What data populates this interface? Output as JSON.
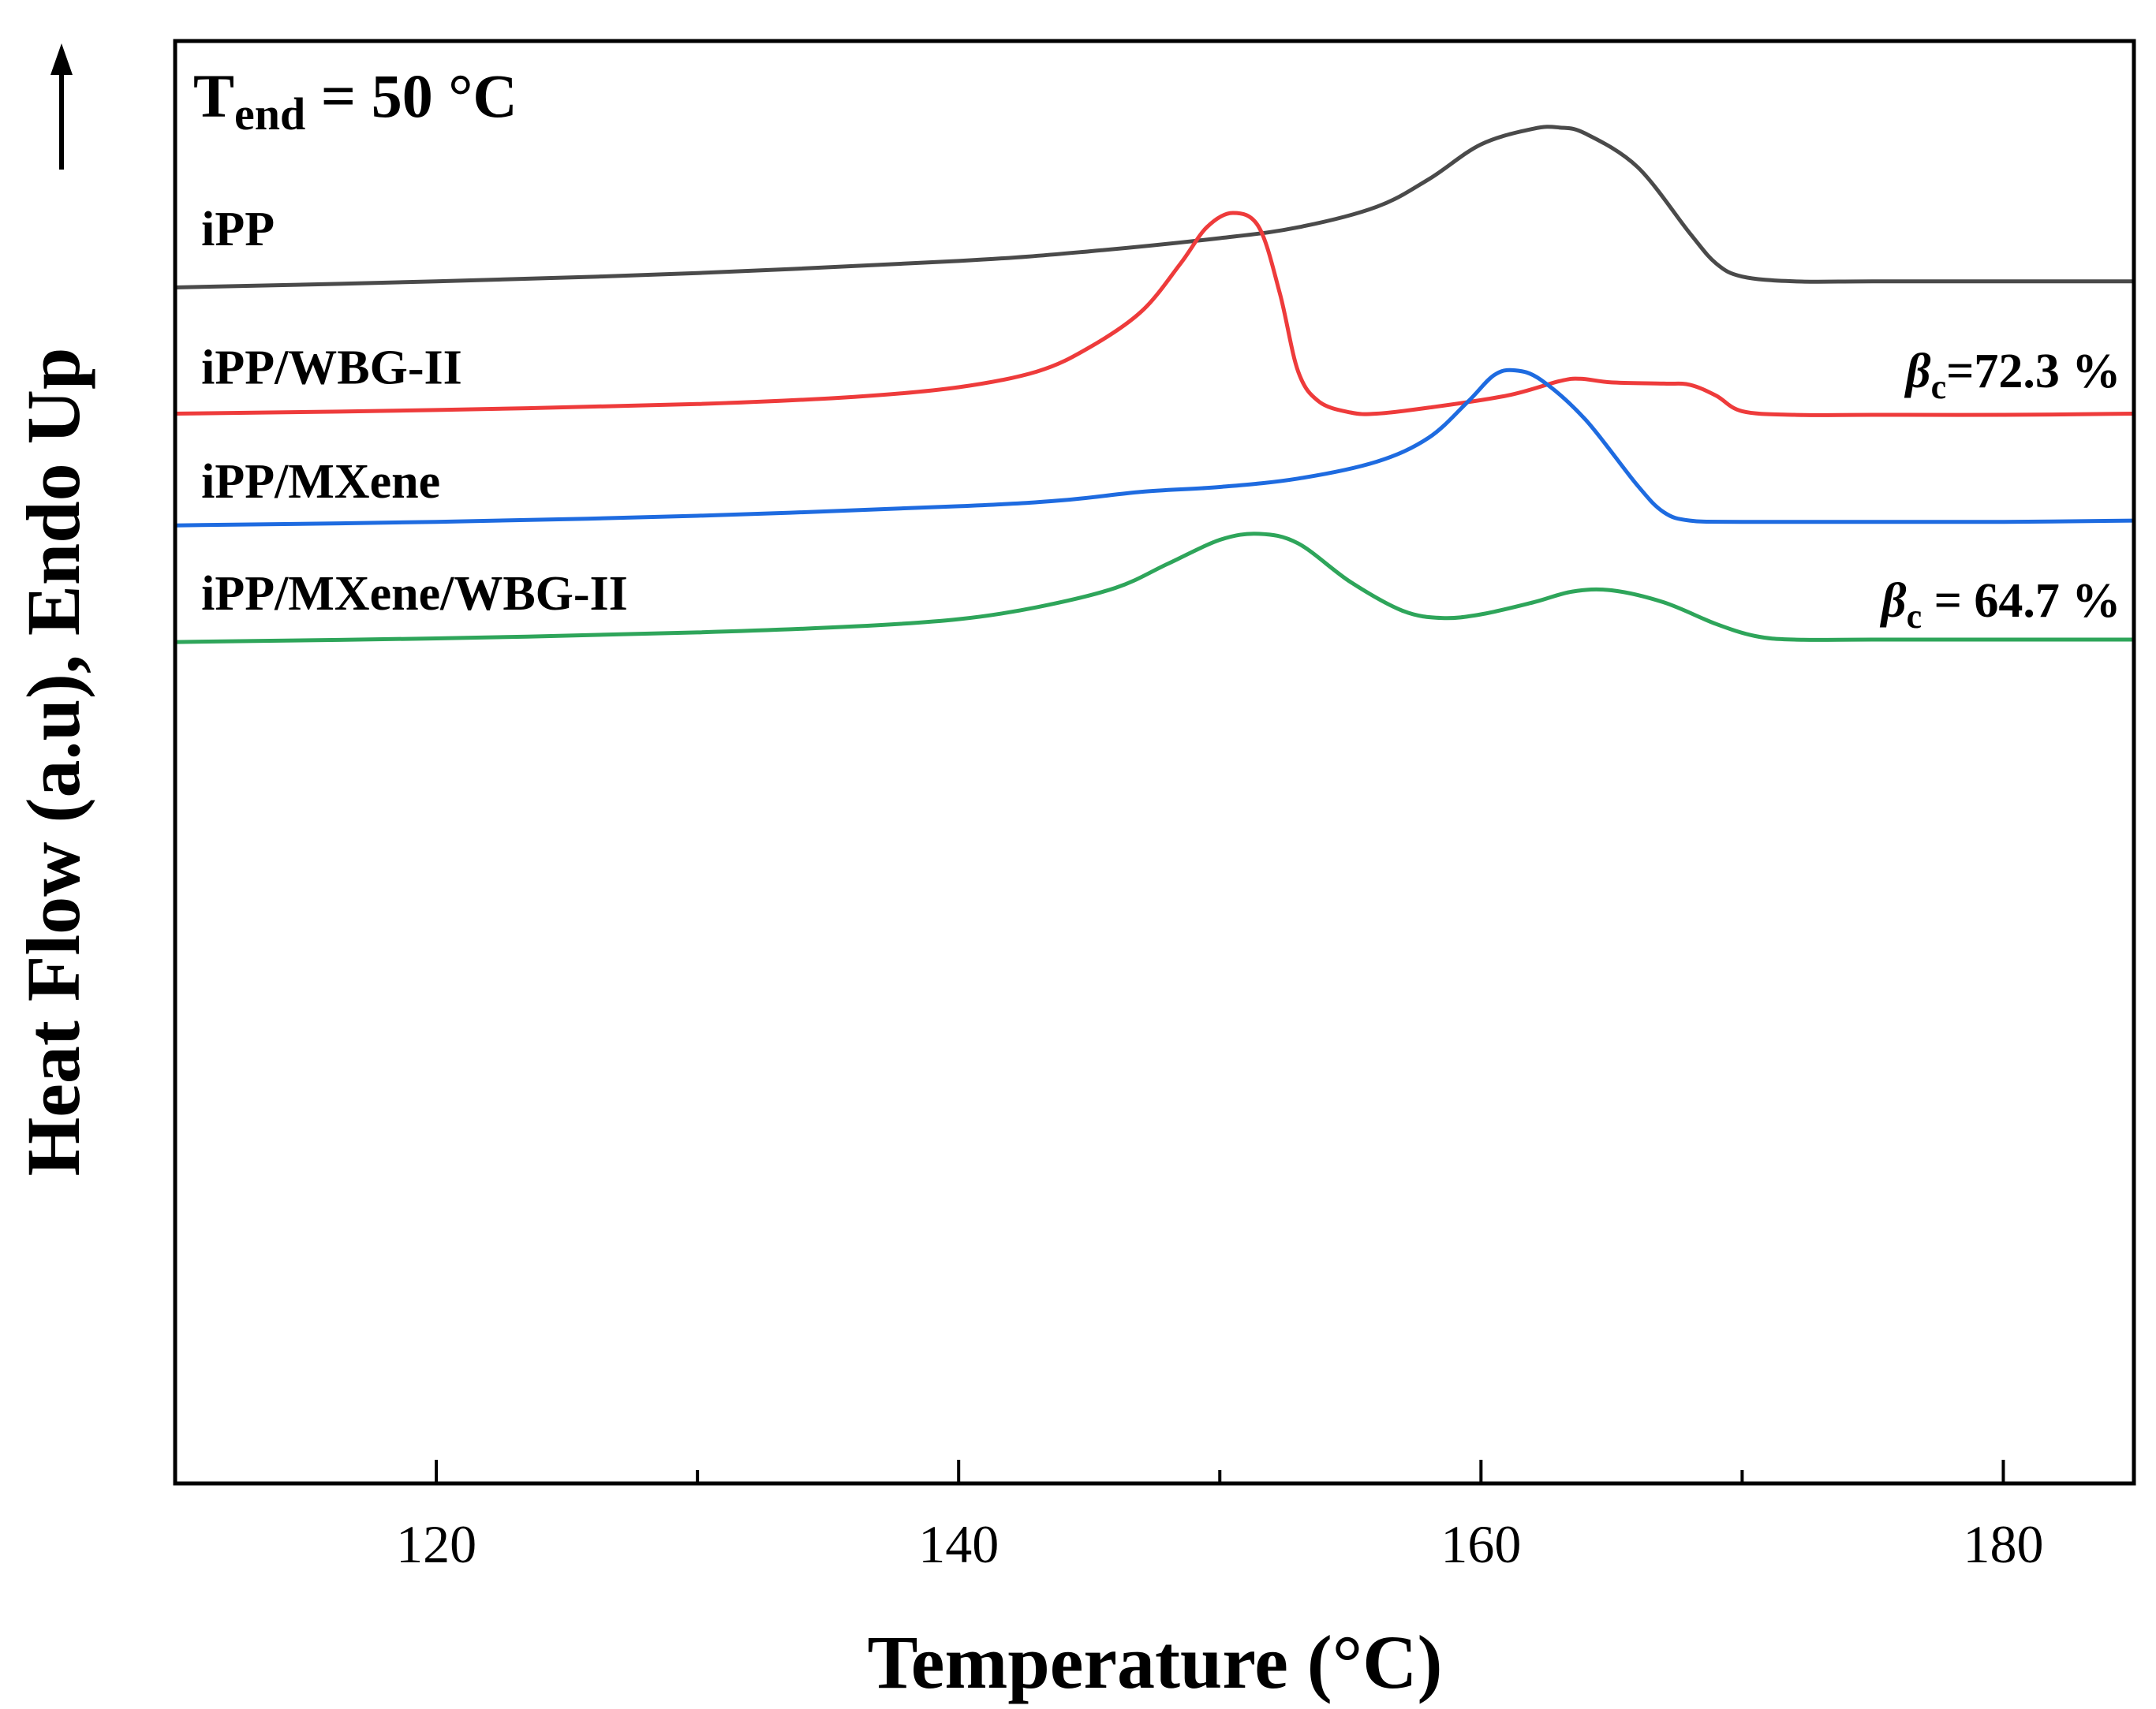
{
  "chart_data": {
    "type": "line",
    "title_main": "T",
    "title_sub": "end",
    "title_rest": " = 50 °C",
    "xlabel": "Temperature (°C)",
    "ylabel": "Heat Flow (a.u), Endo Up",
    "xlim": [
      110,
      185
    ],
    "ylim": [
      -4.0,
      8.0
    ],
    "xticks": [
      120,
      140,
      160,
      180
    ],
    "x_minor_ticks": [
      130,
      150,
      170
    ],
    "yticks_shown": false,
    "series": [
      {
        "name": "iPP",
        "color": "#4a4a4a",
        "label_x": 111,
        "label_y": 6.3,
        "points": [
          [
            110,
            5.95
          ],
          [
            120,
            6.0
          ],
          [
            130,
            6.07
          ],
          [
            140,
            6.17
          ],
          [
            145,
            6.25
          ],
          [
            150,
            6.36
          ],
          [
            153,
            6.45
          ],
          [
            156,
            6.62
          ],
          [
            158,
            6.85
          ],
          [
            160,
            7.14
          ],
          [
            162,
            7.27
          ],
          [
            163,
            7.28
          ],
          [
            164,
            7.23
          ],
          [
            166,
            6.95
          ],
          [
            168,
            6.4
          ],
          [
            169,
            6.15
          ],
          [
            170,
            6.04
          ],
          [
            172,
            6.0
          ],
          [
            175,
            6.0
          ],
          [
            180,
            6.0
          ],
          [
            185,
            6.0
          ]
        ]
      },
      {
        "name": "iPP/WBG-II",
        "color": "#ee3b3b",
        "label_x": 111,
        "label_y": 5.15,
        "annotation": "=72.3 %",
        "annotation_x": 184.5,
        "annotation_y": 5.12,
        "points": [
          [
            110,
            4.9
          ],
          [
            120,
            4.93
          ],
          [
            130,
            4.98
          ],
          [
            136,
            5.04
          ],
          [
            140,
            5.12
          ],
          [
            143,
            5.25
          ],
          [
            145,
            5.45
          ],
          [
            147,
            5.75
          ],
          [
            148.5,
            6.15
          ],
          [
            149.5,
            6.45
          ],
          [
            150.5,
            6.57
          ],
          [
            151.5,
            6.45
          ],
          [
            152.3,
            5.9
          ],
          [
            153,
            5.25
          ],
          [
            153.8,
            5.0
          ],
          [
            155,
            4.91
          ],
          [
            156,
            4.9
          ],
          [
            158,
            4.95
          ],
          [
            161,
            5.05
          ],
          [
            163,
            5.17
          ],
          [
            163.8,
            5.19
          ],
          [
            165,
            5.16
          ],
          [
            167,
            5.15
          ],
          [
            168,
            5.14
          ],
          [
            169,
            5.05
          ],
          [
            170,
            4.92
          ],
          [
            172,
            4.89
          ],
          [
            175,
            4.89
          ],
          [
            180,
            4.89
          ],
          [
            185,
            4.9
          ]
        ]
      },
      {
        "name": "iPP/MXene",
        "color": "#1e6be0",
        "label_x": 111,
        "label_y": 4.2,
        "points": [
          [
            110,
            3.97
          ],
          [
            120,
            4.0
          ],
          [
            130,
            4.05
          ],
          [
            140,
            4.13
          ],
          [
            144,
            4.18
          ],
          [
            147,
            4.25
          ],
          [
            150,
            4.29
          ],
          [
            153,
            4.36
          ],
          [
            156,
            4.5
          ],
          [
            158,
            4.7
          ],
          [
            159.5,
            5.0
          ],
          [
            160.5,
            5.22
          ],
          [
            161.3,
            5.26
          ],
          [
            162.3,
            5.18
          ],
          [
            164,
            4.85
          ],
          [
            166,
            4.3
          ],
          [
            167,
            4.08
          ],
          [
            168,
            4.01
          ],
          [
            170,
            4.0
          ],
          [
            175,
            4.0
          ],
          [
            180,
            4.0
          ],
          [
            185,
            4.01
          ]
        ]
      },
      {
        "name": "iPP/MXene/WBG-II",
        "color": "#2ea55a",
        "label_x": 111,
        "label_y": 3.27,
        "annotation": " = 64.7 %",
        "annotation_x": 184.5,
        "annotation_y": 3.21,
        "points": [
          [
            110,
            3.0
          ],
          [
            120,
            3.03
          ],
          [
            130,
            3.08
          ],
          [
            136,
            3.13
          ],
          [
            140,
            3.19
          ],
          [
            143,
            3.29
          ],
          [
            146,
            3.45
          ],
          [
            148,
            3.65
          ],
          [
            150,
            3.85
          ],
          [
            151.5,
            3.9
          ],
          [
            153,
            3.82
          ],
          [
            155,
            3.5
          ],
          [
            157,
            3.26
          ],
          [
            158.5,
            3.2
          ],
          [
            160,
            3.23
          ],
          [
            162,
            3.33
          ],
          [
            163.5,
            3.42
          ],
          [
            165,
            3.43
          ],
          [
            167,
            3.33
          ],
          [
            169,
            3.15
          ],
          [
            170.5,
            3.05
          ],
          [
            172,
            3.02
          ],
          [
            175,
            3.02
          ],
          [
            180,
            3.02
          ],
          [
            185,
            3.02
          ]
        ]
      }
    ],
    "annotation_symbol": "β",
    "annotation_subscript": "c"
  }
}
